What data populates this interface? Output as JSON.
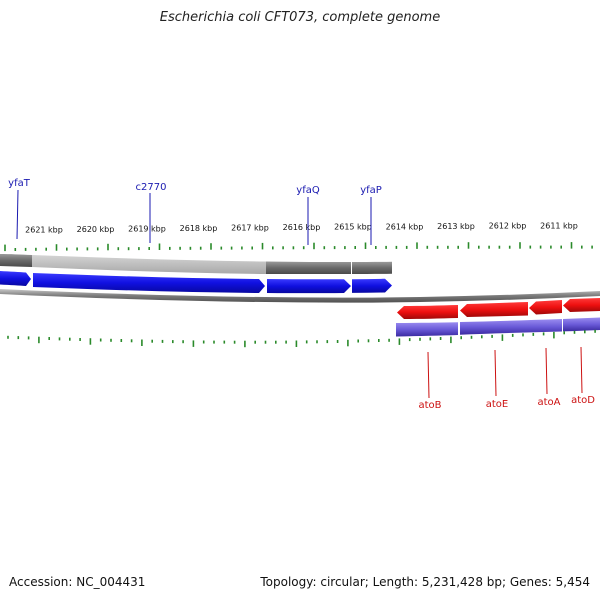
{
  "title": "Escherichia coli CFT073, complete genome",
  "footer": {
    "accession": "Accession: NC_004431",
    "stats": "Topology: circular; Length: 5,231,428 bp; Genes: 5,454"
  },
  "colors": {
    "forward_cds": "#1010e8",
    "reverse_cds": "#ee1111",
    "forward_label": "#1a1ab0",
    "reverse_label": "#cc1111",
    "tick": "#2a8a2a",
    "backbone": "#8a8a8a",
    "reverse_gene": "#7a6ad8"
  },
  "tick_labels": [
    "2621 kbp",
    "2620 kbp",
    "2619 kbp",
    "2618 kbp",
    "2617 kbp",
    "2616 kbp",
    "2615 kbp",
    "2614 kbp",
    "2613 kbp",
    "2612 kbp",
    "2611 kbp"
  ],
  "forward_labels": [
    "yfaT",
    "c2770",
    "yfaQ",
    "yfaP"
  ],
  "reverse_labels": [
    "atoB",
    "atoE",
    "atoA",
    "atoD"
  ]
}
